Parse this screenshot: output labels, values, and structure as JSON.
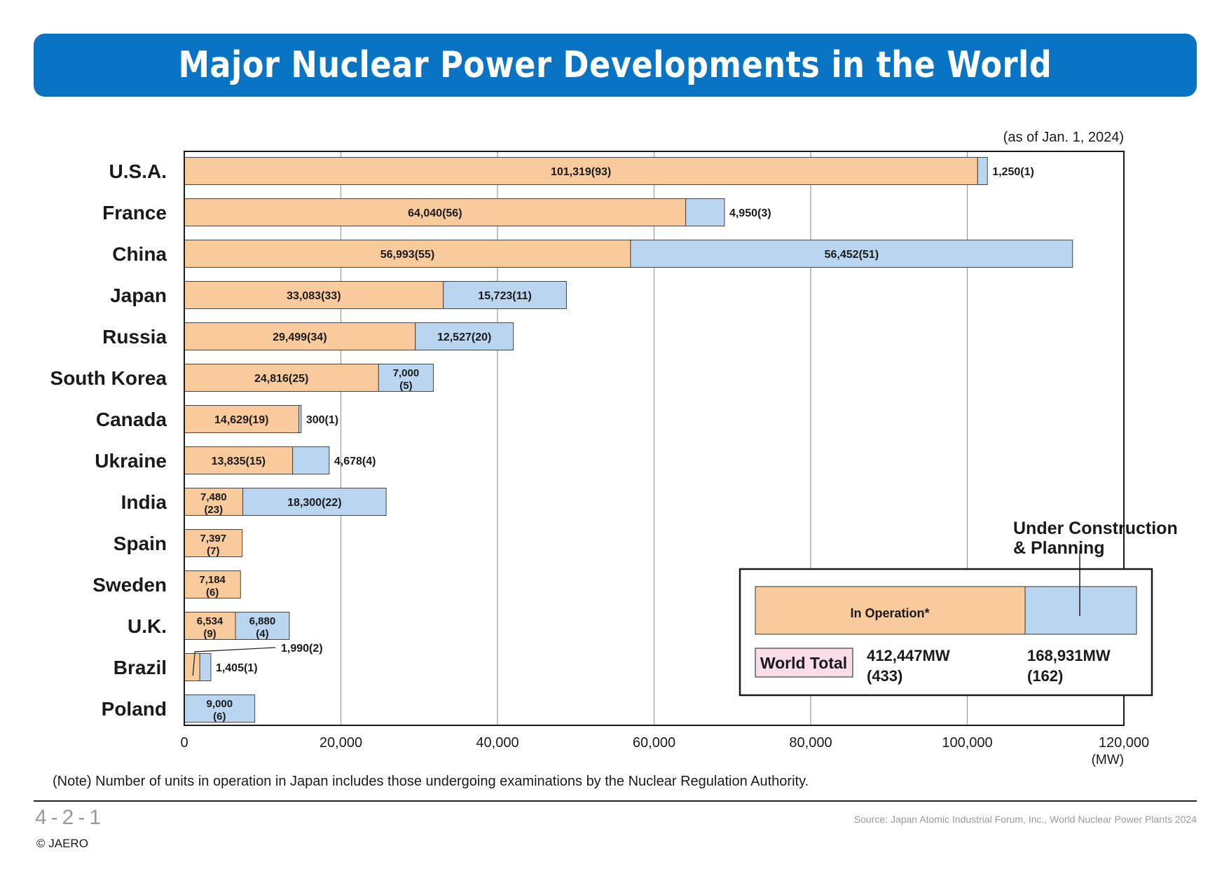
{
  "title": "Major Nuclear Power Developments in the World",
  "as_of": "(as of Jan. 1, 2024)",
  "note": "(Note) Number of units in operation in Japan includes those undergoing examinations by the Nuclear Regulation Authority.",
  "page_number": "4-2-1",
  "copyright": "© JAERO",
  "source": "Source: Japan Atomic Industrial Forum, Inc., World Nuclear Power Plants 2024",
  "colors": {
    "title_bg": "#0a74c4",
    "operation": "#f9cb9c",
    "construction": "#bad5f0",
    "world_total_bg": "#f8dde8",
    "grid": "#9a9a9a"
  },
  "legend": {
    "operation_label": "In Operation*",
    "construction_label_line1": "Under Construction",
    "construction_label_line2": "& Planning",
    "world_total_label": "World Total",
    "operation_total_value": "412,447MW",
    "operation_total_units": "(433)",
    "construction_total_value": "168,931MW",
    "construction_total_units": "(162)"
  },
  "chart_data": {
    "type": "bar",
    "orientation": "horizontal",
    "stacked": true,
    "categories": [
      "U.S.A.",
      "France",
      "China",
      "Japan",
      "Russia",
      "South Korea",
      "Canada",
      "Ukraine",
      "India",
      "Spain",
      "Sweden",
      "U.K.",
      "Brazil",
      "Poland"
    ],
    "series": [
      {
        "name": "In Operation*",
        "values": [
          101319,
          64040,
          56993,
          33083,
          29499,
          24816,
          14629,
          13835,
          7480,
          7397,
          7184,
          6534,
          1990,
          0
        ],
        "units": [
          93,
          56,
          55,
          33,
          34,
          25,
          19,
          15,
          23,
          7,
          6,
          9,
          2,
          0
        ],
        "labels": [
          "101,319(93)",
          "64,040(56)",
          "56,993(55)",
          "33,083(33)",
          "29,499(34)",
          "24,816(25)",
          "14,629(19)",
          "13,835(15)",
          "7,480\n(23)",
          "7,397\n(7)",
          "7,184\n(6)",
          "6,534\n(9)",
          "1,990(2)",
          ""
        ]
      },
      {
        "name": "Under Construction & Planning",
        "values": [
          1250,
          4950,
          56452,
          15723,
          12527,
          7000,
          300,
          4678,
          18300,
          0,
          0,
          6880,
          1405,
          9000
        ],
        "units": [
          1,
          3,
          51,
          11,
          20,
          5,
          1,
          4,
          22,
          0,
          0,
          4,
          1,
          6
        ],
        "labels": [
          "1,250(1)",
          "4,950(3)",
          "56,452(51)",
          "15,723(11)",
          "12,527(20)",
          "7,000\n(5)",
          "300(1)",
          "4,678(4)",
          "18,300(22)",
          "",
          "",
          "6,880\n(4)",
          "1,405(1)",
          "9,000\n(6)"
        ]
      }
    ],
    "xlim": [
      0,
      120000
    ],
    "xticks": [
      0,
      20000,
      40000,
      60000,
      80000,
      100000,
      120000
    ],
    "xtick_labels": [
      "0",
      "20,000",
      "40,000",
      "60,000",
      "80,000",
      "100,000",
      "120,000"
    ],
    "xlabel": "(MW)",
    "grid": "vertical"
  }
}
